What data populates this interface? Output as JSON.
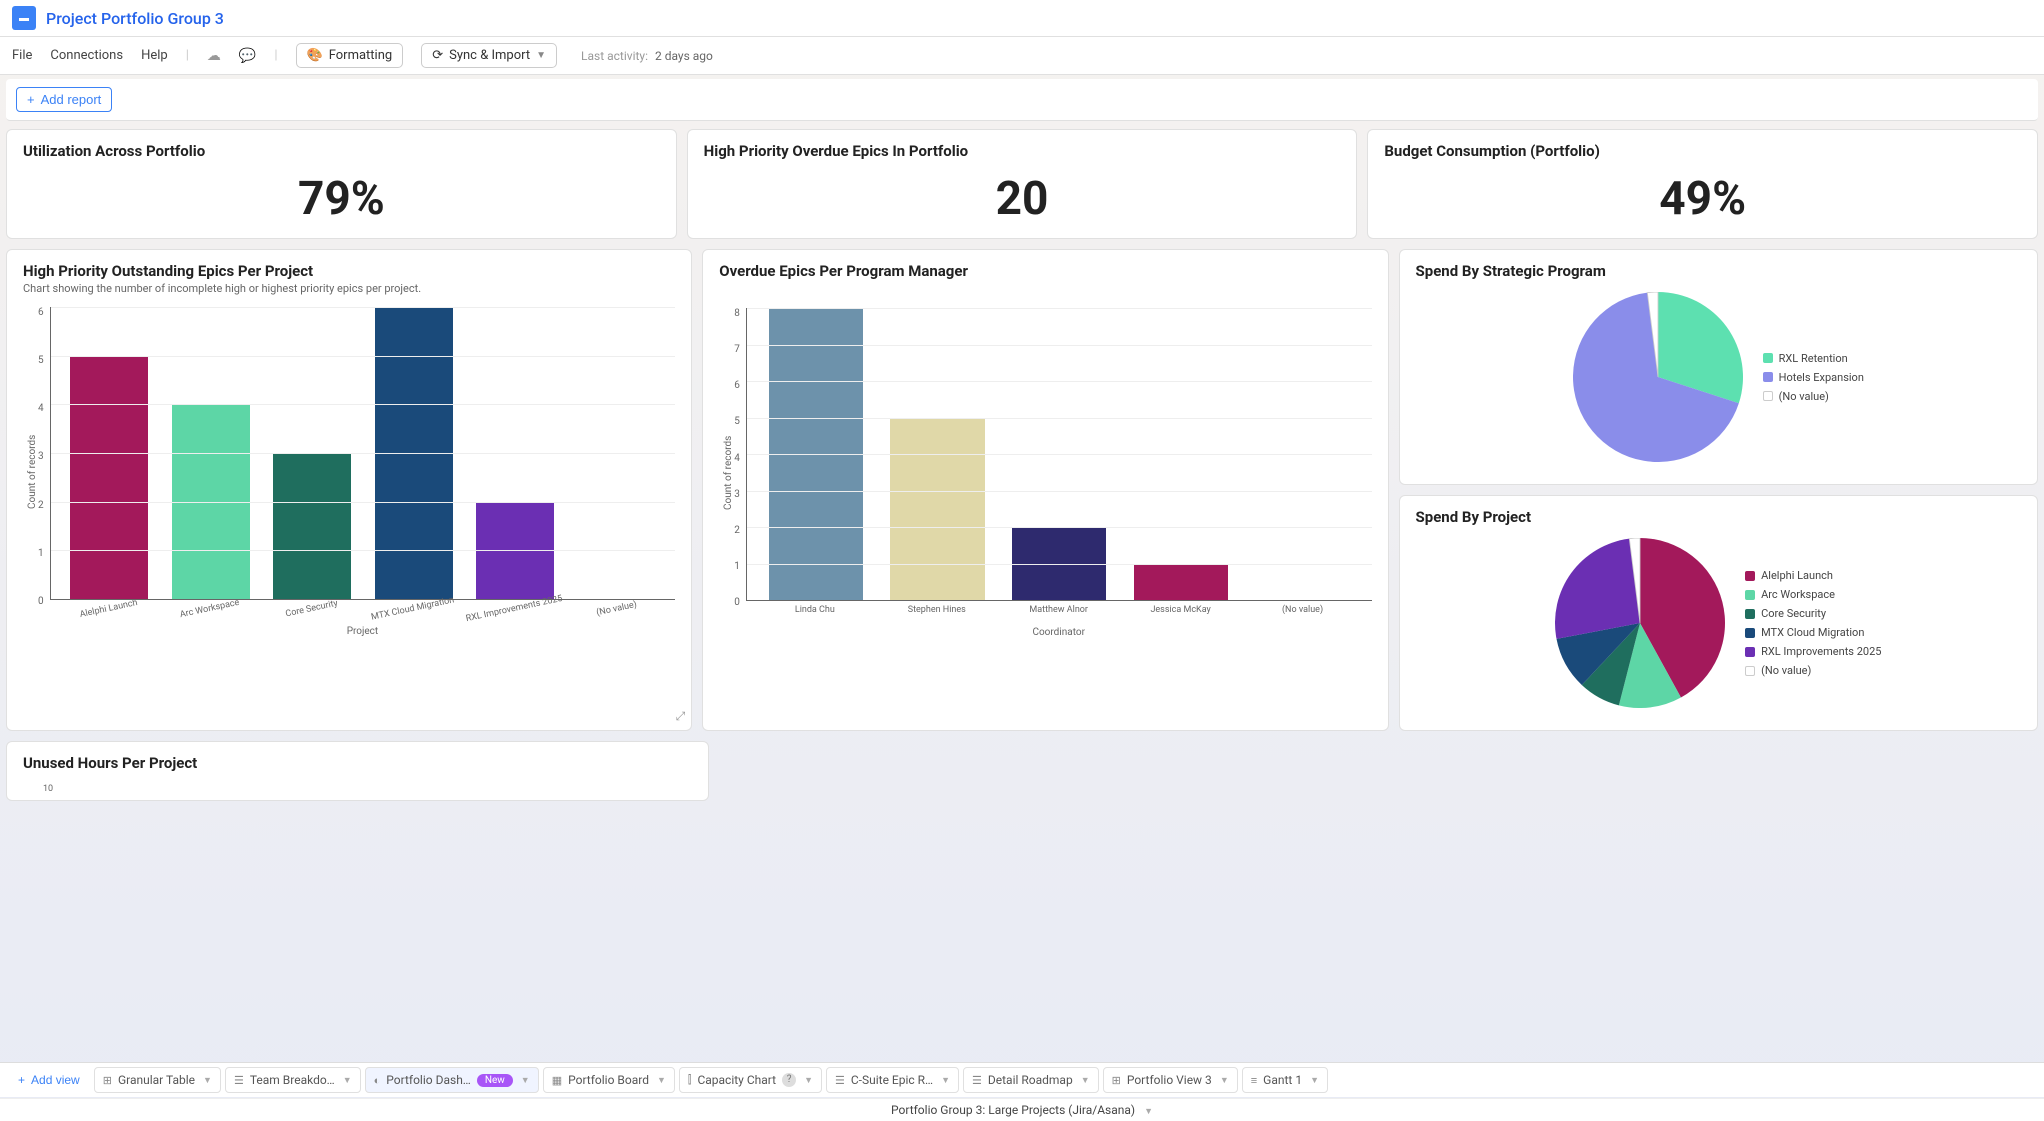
{
  "header": {
    "title": "Project Portfolio Group 3"
  },
  "menu": {
    "file": "File",
    "connections": "Connections",
    "help": "Help",
    "formatting": "Formatting",
    "sync": "Sync & Import",
    "last_activity_label": "Last activity:",
    "last_activity_value": "2 days ago"
  },
  "add_report": "Add report",
  "kpis": {
    "utilization": {
      "title": "Utilization Across Portfolio",
      "value": "79%"
    },
    "overdue": {
      "title": "High Priority Overdue Epics In Portfolio",
      "value": "20"
    },
    "budget": {
      "title": "Budget Consumption (Portfolio)",
      "value": "49%"
    }
  },
  "chart1": {
    "title": "High Priority Outstanding Epics Per Project",
    "subtitle": "Chart showing the number of incomplete high or highest priority epics per project.",
    "type": "bar",
    "y_label": "Count of records",
    "x_label": "Project",
    "ylim": [
      0,
      6
    ],
    "ytick_step": 1,
    "categories": [
      "Alelphi Launch",
      "Arc Workspace",
      "Core Security",
      "MTX Cloud Migration",
      "RXL Improvements 2025",
      "(No value)"
    ],
    "values": [
      5,
      4,
      3,
      6,
      2,
      0
    ],
    "colors": [
      "#a3195b",
      "#5dd6a6",
      "#1f6e5e",
      "#1a4a7a",
      "#6b2fb3",
      "#cccccc"
    ],
    "background_color": "#ffffff",
    "grid_color": "#eeeeee"
  },
  "chart2": {
    "title": "Overdue Epics Per Program Manager",
    "type": "bar",
    "y_label": "Count of records",
    "x_label": "Coordinator",
    "ylim": [
      0,
      8
    ],
    "ytick_step": 1,
    "categories": [
      "Linda Chu",
      "Stephen Hines",
      "Matthew Alnor",
      "Jessica McKay",
      "(No value)"
    ],
    "values": [
      8,
      5,
      2,
      1,
      0
    ],
    "colors": [
      "#6d92ab",
      "#e0d8a8",
      "#2e2a6e",
      "#a3195b",
      "#cccccc"
    ],
    "background_color": "#ffffff",
    "grid_color": "#eeeeee"
  },
  "pie1": {
    "title": "Spend By Strategic Program",
    "type": "pie",
    "slices": [
      {
        "label": "RXL Retention",
        "value": 30,
        "color": "#5de0b0"
      },
      {
        "label": "Hotels Expansion",
        "value": 68,
        "color": "#8a8dea"
      },
      {
        "label": "(No value)",
        "value": 2,
        "color": "#ffffff"
      }
    ]
  },
  "pie2": {
    "title": "Spend By Project",
    "type": "pie",
    "slices": [
      {
        "label": "Alelphi Launch",
        "value": 42,
        "color": "#a3195b"
      },
      {
        "label": "Arc Workspace",
        "value": 12,
        "color": "#5dd6a6"
      },
      {
        "label": "Core Security",
        "value": 8,
        "color": "#1f6e5e"
      },
      {
        "label": "MTX Cloud Migration",
        "value": 10,
        "color": "#1a4a7a"
      },
      {
        "label": "RXL Improvements 2025",
        "value": 26,
        "color": "#6b2fb3"
      },
      {
        "label": "(No value)",
        "value": 2,
        "color": "#ffffff"
      }
    ]
  },
  "chart3": {
    "title": "Unused Hours Per Project",
    "type": "bar",
    "ylim": [
      0,
      10
    ],
    "ytick_step": 10
  },
  "tabs": {
    "add_view": "Add view",
    "items": [
      {
        "icon": "table",
        "label": "Granular Table"
      },
      {
        "icon": "roadmap",
        "label": "Team Breakdo…"
      },
      {
        "icon": "dashboard",
        "label": "Portfolio Dash…",
        "badge": "New",
        "active": true
      },
      {
        "icon": "board",
        "label": "Portfolio Board"
      },
      {
        "icon": "chart",
        "label": "Capacity Chart",
        "help": true
      },
      {
        "icon": "roadmap",
        "label": "C-Suite Epic R…"
      },
      {
        "icon": "roadmap",
        "label": "Detail Roadmap"
      },
      {
        "icon": "table",
        "label": "Portfolio View 3"
      },
      {
        "icon": "gantt",
        "label": "Gantt 1"
      }
    ]
  },
  "footer": {
    "text": "Portfolio Group 3: Large Projects (Jira/Asana)"
  }
}
